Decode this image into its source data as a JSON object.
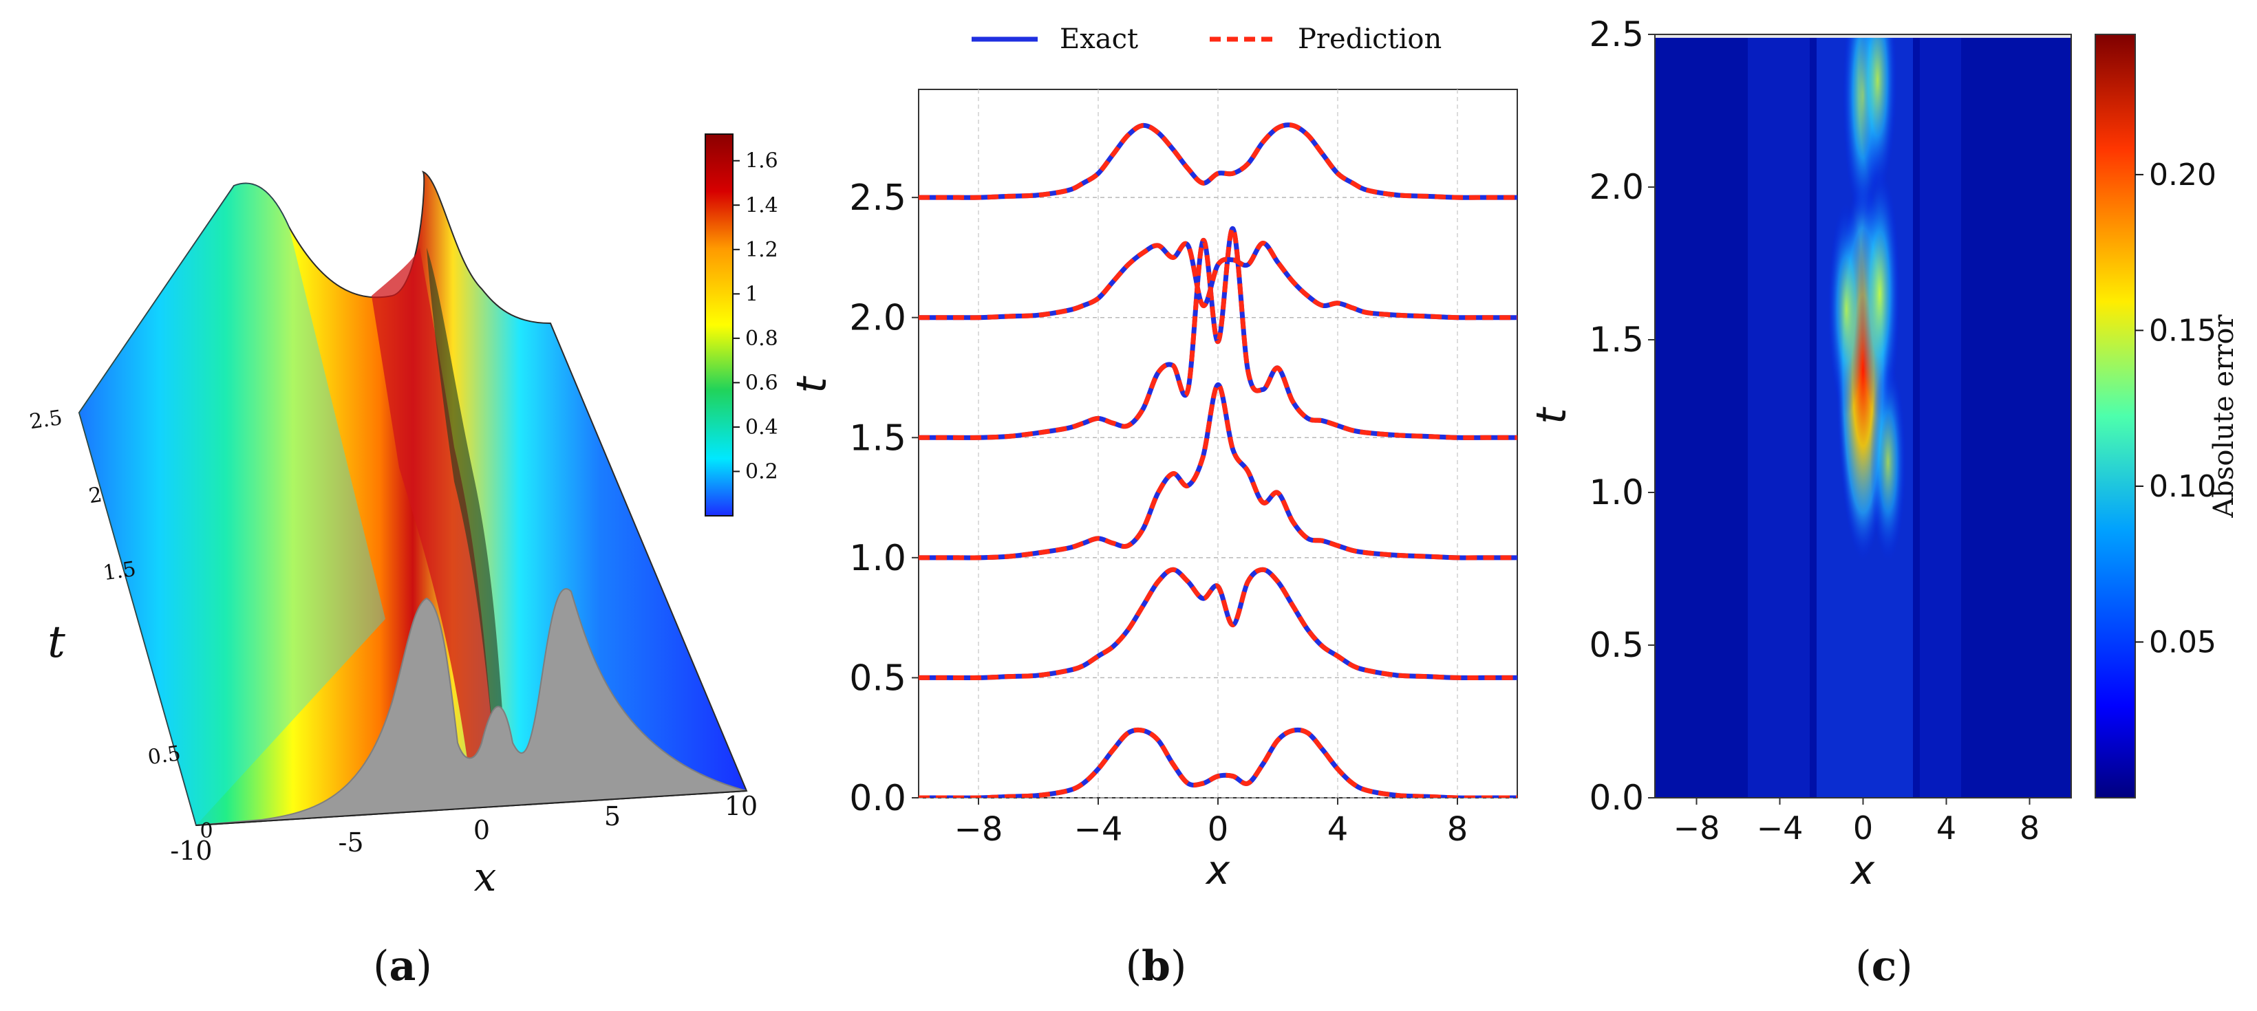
{
  "panels": {
    "a": {
      "label_open": "(",
      "label_letter": "a",
      "label_close": ")"
    },
    "b": {
      "label_open": "(",
      "label_letter": "b",
      "label_close": ")"
    },
    "c": {
      "label_open": "(",
      "label_letter": "c",
      "label_close": ")"
    }
  },
  "chart_data": [
    {
      "id": "a",
      "type": "surface3d",
      "title": "",
      "xlabel": "x",
      "ylabel": "t",
      "x_ticks": [
        "-10",
        "-5",
        "0",
        "5",
        "10"
      ],
      "t_ticks": [
        "0",
        "0.5",
        "1.5",
        "2",
        "2.5"
      ],
      "xlim": [
        -10,
        10
      ],
      "tlim": [
        0,
        2.5
      ],
      "colorbar": {
        "ticks": [
          "0.2",
          "0.4",
          "0.6",
          "0.8",
          "1",
          "1.2",
          "1.4",
          "1.6"
        ],
        "range": [
          0,
          1.72
        ],
        "colors": [
          "#1c2cff",
          "#00e8ff",
          "#21d35a",
          "#ffff00",
          "#ff9a00",
          "#d70000",
          "#8b0000"
        ]
      },
      "initial_profile_x": [
        -10,
        -8,
        -6,
        -4,
        -3,
        -2.5,
        -2,
        -1,
        0,
        1,
        2,
        2.5,
        3,
        4,
        6,
        8,
        10
      ],
      "initial_profile_u": [
        0.02,
        0.05,
        0.18,
        0.55,
        0.72,
        0.76,
        0.72,
        0.35,
        0.12,
        0.35,
        0.72,
        0.76,
        0.72,
        0.55,
        0.18,
        0.05,
        0.02
      ]
    },
    {
      "id": "b",
      "type": "line",
      "title": "",
      "xlabel": "x",
      "ylabel": "t",
      "xlim": [
        -10,
        10
      ],
      "ylim": [
        0,
        2.95
      ],
      "x_ticks": [
        -8,
        -4,
        0,
        4,
        8
      ],
      "x_tick_labels": [
        "−8",
        "−4",
        "0",
        "4",
        "8"
      ],
      "y_ticks": [
        0,
        0.5,
        1.0,
        1.5,
        2.0,
        2.5
      ],
      "y_tick_labels": [
        "0.0",
        "0.5",
        "1.0",
        "1.5",
        "2.0",
        "2.5"
      ],
      "grid": true,
      "legend": {
        "placement": "top-outside",
        "entries": [
          "Exact",
          "Prediction"
        ]
      },
      "x": [
        -10,
        -9,
        -8,
        -7,
        -6,
        -5,
        -4.5,
        -4,
        -3.5,
        -3,
        -2.5,
        -2,
        -1.5,
        -1,
        -0.5,
        0,
        0.5,
        1,
        1.5,
        2,
        2.5,
        3,
        3.5,
        4,
        4.5,
        5,
        6,
        7,
        8,
        9,
        10
      ],
      "series": [
        {
          "name": "Exact",
          "color": "#1f2fe0",
          "offsets": [
            0,
            0.5,
            1.0,
            1.5,
            2.0,
            2.5
          ],
          "curves": [
            [
              0,
              0,
              0,
              0.005,
              0.01,
              0.03,
              0.06,
              0.12,
              0.2,
              0.27,
              0.28,
              0.24,
              0.14,
              0.06,
              0.06,
              0.09,
              0.09,
              0.06,
              0.14,
              0.24,
              0.28,
              0.27,
              0.2,
              0.12,
              0.06,
              0.03,
              0.01,
              0.005,
              0,
              0,
              0
            ],
            [
              0,
              0,
              0,
              0.005,
              0.01,
              0.03,
              0.05,
              0.09,
              0.13,
              0.2,
              0.3,
              0.4,
              0.45,
              0.4,
              0.33,
              0.38,
              0.22,
              0.4,
              0.45,
              0.4,
              0.3,
              0.2,
              0.13,
              0.09,
              0.05,
              0.03,
              0.01,
              0.005,
              0,
              0,
              0
            ],
            [
              0,
              0,
              0,
              0.005,
              0.02,
              0.04,
              0.06,
              0.08,
              0.06,
              0.05,
              0.12,
              0.27,
              0.35,
              0.3,
              0.42,
              0.72,
              0.45,
              0.36,
              0.23,
              0.27,
              0.15,
              0.08,
              0.07,
              0.05,
              0.03,
              0.02,
              0.01,
              0.005,
              0,
              0,
              0
            ],
            [
              0,
              0,
              0,
              0.005,
              0.02,
              0.04,
              0.06,
              0.08,
              0.06,
              0.05,
              0.12,
              0.27,
              0.3,
              0.2,
              0.82,
              0.4,
              0.87,
              0.28,
              0.2,
              0.29,
              0.15,
              0.08,
              0.07,
              0.05,
              0.03,
              0.02,
              0.01,
              0.005,
              0,
              0,
              0
            ],
            [
              0,
              0,
              0,
              0.005,
              0.01,
              0.03,
              0.05,
              0.08,
              0.15,
              0.22,
              0.27,
              0.3,
              0.25,
              0.3,
              0.05,
              0.22,
              0.24,
              0.22,
              0.31,
              0.23,
              0.15,
              0.09,
              0.05,
              0.06,
              0.04,
              0.02,
              0.01,
              0.005,
              0,
              0,
              0
            ],
            [
              0,
              0,
              0,
              0.005,
              0.01,
              0.03,
              0.06,
              0.1,
              0.18,
              0.26,
              0.3,
              0.27,
              0.2,
              0.12,
              0.06,
              0.1,
              0.1,
              0.14,
              0.23,
              0.29,
              0.3,
              0.26,
              0.18,
              0.1,
              0.06,
              0.03,
              0.01,
              0.005,
              0,
              0,
              0
            ]
          ]
        },
        {
          "name": "Prediction",
          "color": "#ff2a14",
          "dashed": true
        }
      ]
    },
    {
      "id": "c",
      "type": "heatmap",
      "title": "",
      "xlabel": "x",
      "ylabel": "t",
      "xlim": [
        -10,
        10
      ],
      "ylim": [
        0,
        2.5
      ],
      "x_ticks": [
        -8,
        -4,
        0,
        4,
        8
      ],
      "x_tick_labels": [
        "−8",
        "−4",
        "0",
        "4",
        "8"
      ],
      "y_ticks": [
        0,
        0.5,
        1.0,
        1.5,
        2.0,
        2.5
      ],
      "y_tick_labels": [
        "0.0",
        "0.5",
        "1.0",
        "1.5",
        "2.0",
        "2.5"
      ],
      "colorbar": {
        "label": "Absolute error",
        "ticks": [
          0.05,
          0.1,
          0.15,
          0.2
        ],
        "tick_labels": [
          "0.05",
          "0.10",
          "0.15",
          "0.20"
        ],
        "range": [
          0,
          0.245
        ]
      },
      "hotspots": [
        {
          "x": 0,
          "t": 1.4,
          "value": 0.23
        },
        {
          "x": 0.8,
          "t": 1.65,
          "value": 0.13
        },
        {
          "x": -0.8,
          "t": 1.6,
          "value": 0.1
        },
        {
          "x": 0,
          "t": 2.3,
          "value": 0.13
        },
        {
          "x": 0.7,
          "t": 2.35,
          "value": 0.11
        },
        {
          "x": 1.2,
          "t": 1.1,
          "value": 0.09
        }
      ]
    }
  ]
}
